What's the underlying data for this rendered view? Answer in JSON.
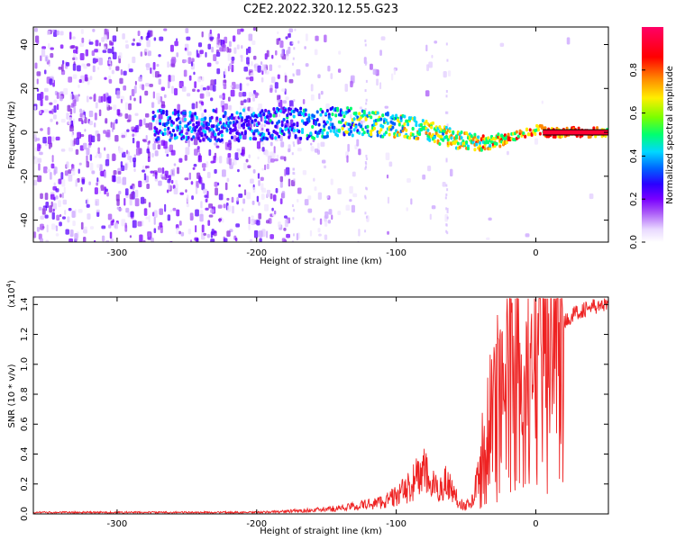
{
  "chart_data": [
    {
      "type": "heatmap",
      "title": "C2E2.2022.320.12.55.G23",
      "xlabel": "Height of straight line (km)",
      "ylabel": "Frequency (Hz)",
      "xlim": [
        -360,
        52
      ],
      "ylim": [
        -50,
        48
      ],
      "xticks": [
        -300,
        -200,
        -100,
        0
      ],
      "yticks": [
        -40,
        -20,
        0,
        20,
        40
      ],
      "grid": false,
      "colorbar": {
        "label": "Normalized spectral amplitude",
        "range": [
          0.0,
          1.0
        ],
        "ticks": [
          "0.0",
          "0.2",
          "0.4",
          "0.6",
          "0.8"
        ],
        "colormap": [
          "#ffffff",
          "#e8d8ff",
          "#a855f7",
          "#7a00ff",
          "#2a00ff",
          "#0060ff",
          "#00d8ff",
          "#00ff70",
          "#7aff00",
          "#ffee00",
          "#ff8800",
          "#ff0000",
          "#ff0066"
        ]
      },
      "ridge": {
        "x": [
          -275,
          -220,
          -180,
          -160,
          -140,
          -120,
          -100,
          -80,
          -60,
          -50,
          -40,
          -30,
          -20,
          -10,
          0,
          10,
          20,
          52
        ],
        "y": [
          3,
          3,
          4,
          4,
          5,
          4,
          3,
          1,
          -3,
          -4,
          -5,
          -4,
          -2,
          0,
          1,
          0,
          0,
          0
        ]
      }
    },
    {
      "type": "line",
      "xlabel": "Height of straight line (km)",
      "ylabel": "SNR (10 * v/v)",
      "y_multiplier": "(x10^4)",
      "y_multiplier_base": "(x10",
      "y_multiplier_exp": "4",
      "y_multiplier_close": ")",
      "xlim": [
        -360,
        52
      ],
      "ylim": [
        0.0,
        1.45
      ],
      "xticks": [
        -300,
        -200,
        -100,
        0
      ],
      "yticks": [
        "0.0",
        "0.2",
        "0.4",
        "0.6",
        "0.8",
        "1.0",
        "1.2",
        "1.4"
      ],
      "series": [
        {
          "color": "#ee2222",
          "x": [
            -360,
            -300,
            -250,
            -200,
            -170,
            -150,
            -130,
            -110,
            -100,
            -90,
            -85,
            -80,
            -75,
            -70,
            -65,
            -60,
            -55,
            -50,
            -45,
            -40,
            -35,
            -30,
            -25,
            -20,
            -15,
            -10,
            -5,
            0,
            5,
            10,
            15,
            20,
            25,
            30,
            35,
            40,
            45,
            52
          ],
          "values": [
            0.01,
            0.01,
            0.01,
            0.01,
            0.02,
            0.03,
            0.05,
            0.08,
            0.12,
            0.18,
            0.25,
            0.28,
            0.2,
            0.15,
            0.22,
            0.16,
            0.08,
            0.05,
            0.1,
            0.3,
            0.5,
            0.65,
            0.8,
            0.95,
            0.92,
            0.85,
            0.88,
            0.95,
            1.05,
            1.15,
            1.22,
            1.28,
            1.32,
            1.35,
            1.37,
            1.38,
            1.39,
            1.39
          ]
        }
      ]
    }
  ]
}
